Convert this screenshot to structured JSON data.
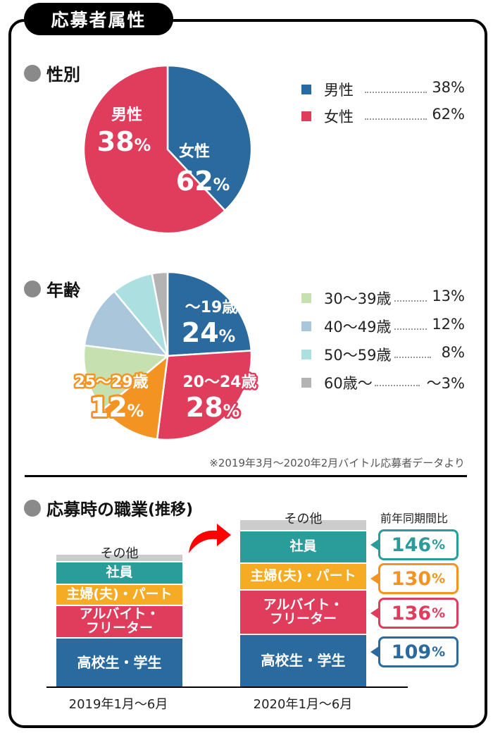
{
  "title": "応募者属性",
  "colors": {
    "blue": "#2A6A9E",
    "red": "#E03C5C",
    "orange": "#F39422",
    "yellow": "#F5AC24",
    "teal": "#2A9C9A",
    "light_green": "#C6E0B0",
    "light_blue": "#AAC6DA",
    "light_cyan": "#ACDFE0",
    "gray": "#B3B3B3",
    "other_gray": "#CCCCCC",
    "arrow_red": "#FF0000"
  },
  "gender": {
    "heading": "性別",
    "legend": [
      {
        "label": "男性",
        "value": "38%"
      },
      {
        "label": "女性",
        "value": "62%"
      }
    ],
    "pie_labels": [
      {
        "name": "男性",
        "value": "38",
        "unit": "%"
      },
      {
        "name": "女性",
        "value": "62",
        "unit": "%"
      }
    ]
  },
  "age": {
    "heading": "年齢",
    "legend": [
      {
        "label": "30〜39歳",
        "value": "13%"
      },
      {
        "label": "40〜49歳",
        "value": "12%"
      },
      {
        "label": "50〜59歳",
        "value": "8%"
      },
      {
        "label": "60歳〜",
        "value": "〜3%"
      }
    ],
    "pie_labels": [
      {
        "name": "〜19歳",
        "value": "24",
        "unit": "%"
      },
      {
        "name": "20〜24歳",
        "value": "28",
        "unit": "%"
      },
      {
        "name": "25〜29歳",
        "value": "12",
        "unit": "%"
      }
    ],
    "note": "※2019年3月〜2020年2月バイトル応募者データより"
  },
  "occupation": {
    "heading": "応募時の職業",
    "heading_suffix": "(推移)",
    "ratio_heading": "前年同期間比",
    "other_label": "その他",
    "segments": [
      {
        "label": "社員"
      },
      {
        "label": "主婦(夫)・パート"
      },
      {
        "label_line1": "アルバイト・",
        "label_line2": "フリーター"
      },
      {
        "label": "高校生・学生"
      }
    ],
    "callouts": [
      {
        "value": "146",
        "unit": "%"
      },
      {
        "value": "130",
        "unit": "%"
      },
      {
        "value": "136",
        "unit": "%"
      },
      {
        "value": "109",
        "unit": "%"
      }
    ]
  },
  "chart_data": [
    {
      "type": "pie",
      "title": "性別",
      "categories": [
        "男性",
        "女性"
      ],
      "values": [
        38,
        62
      ],
      "colors": [
        "#2A6A9E",
        "#E03C5C"
      ],
      "legend": "right"
    },
    {
      "type": "pie",
      "title": "年齢",
      "categories": [
        "〜19歳",
        "20〜24歳",
        "25〜29歳",
        "30〜39歳",
        "40〜49歳",
        "50〜59歳",
        "60歳〜"
      ],
      "values": [
        24,
        28,
        12,
        13,
        12,
        8,
        3
      ],
      "colors": [
        "#2A6A9E",
        "#E03C5C",
        "#F39422",
        "#C6E0B0",
        "#AAC6DA",
        "#ACDFE0",
        "#B3B3B3"
      ],
      "legend": "right"
    },
    {
      "type": "bar",
      "stacked": true,
      "title": "応募時の職業(推移)",
      "categories": [
        "2019年1月〜6月",
        "2020年1月〜6月"
      ],
      "series": [
        {
          "name": "高校生・学生",
          "values": [
            70,
            75
          ]
        },
        {
          "name": "アルバイト・フリーター",
          "values": [
            46,
            63
          ]
        },
        {
          "name": "主婦(夫)・パート",
          "values": [
            30,
            38
          ]
        },
        {
          "name": "社員",
          "values": [
            32,
            46
          ]
        },
        {
          "name": "その他",
          "values": [
            11,
            16
          ]
        }
      ],
      "growth_vs_prior_year": {
        "社員": "146%",
        "主婦(夫)・パート": "130%",
        "アルバイト・フリーター": "136%",
        "高校生・学生": "109%"
      }
    }
  ]
}
